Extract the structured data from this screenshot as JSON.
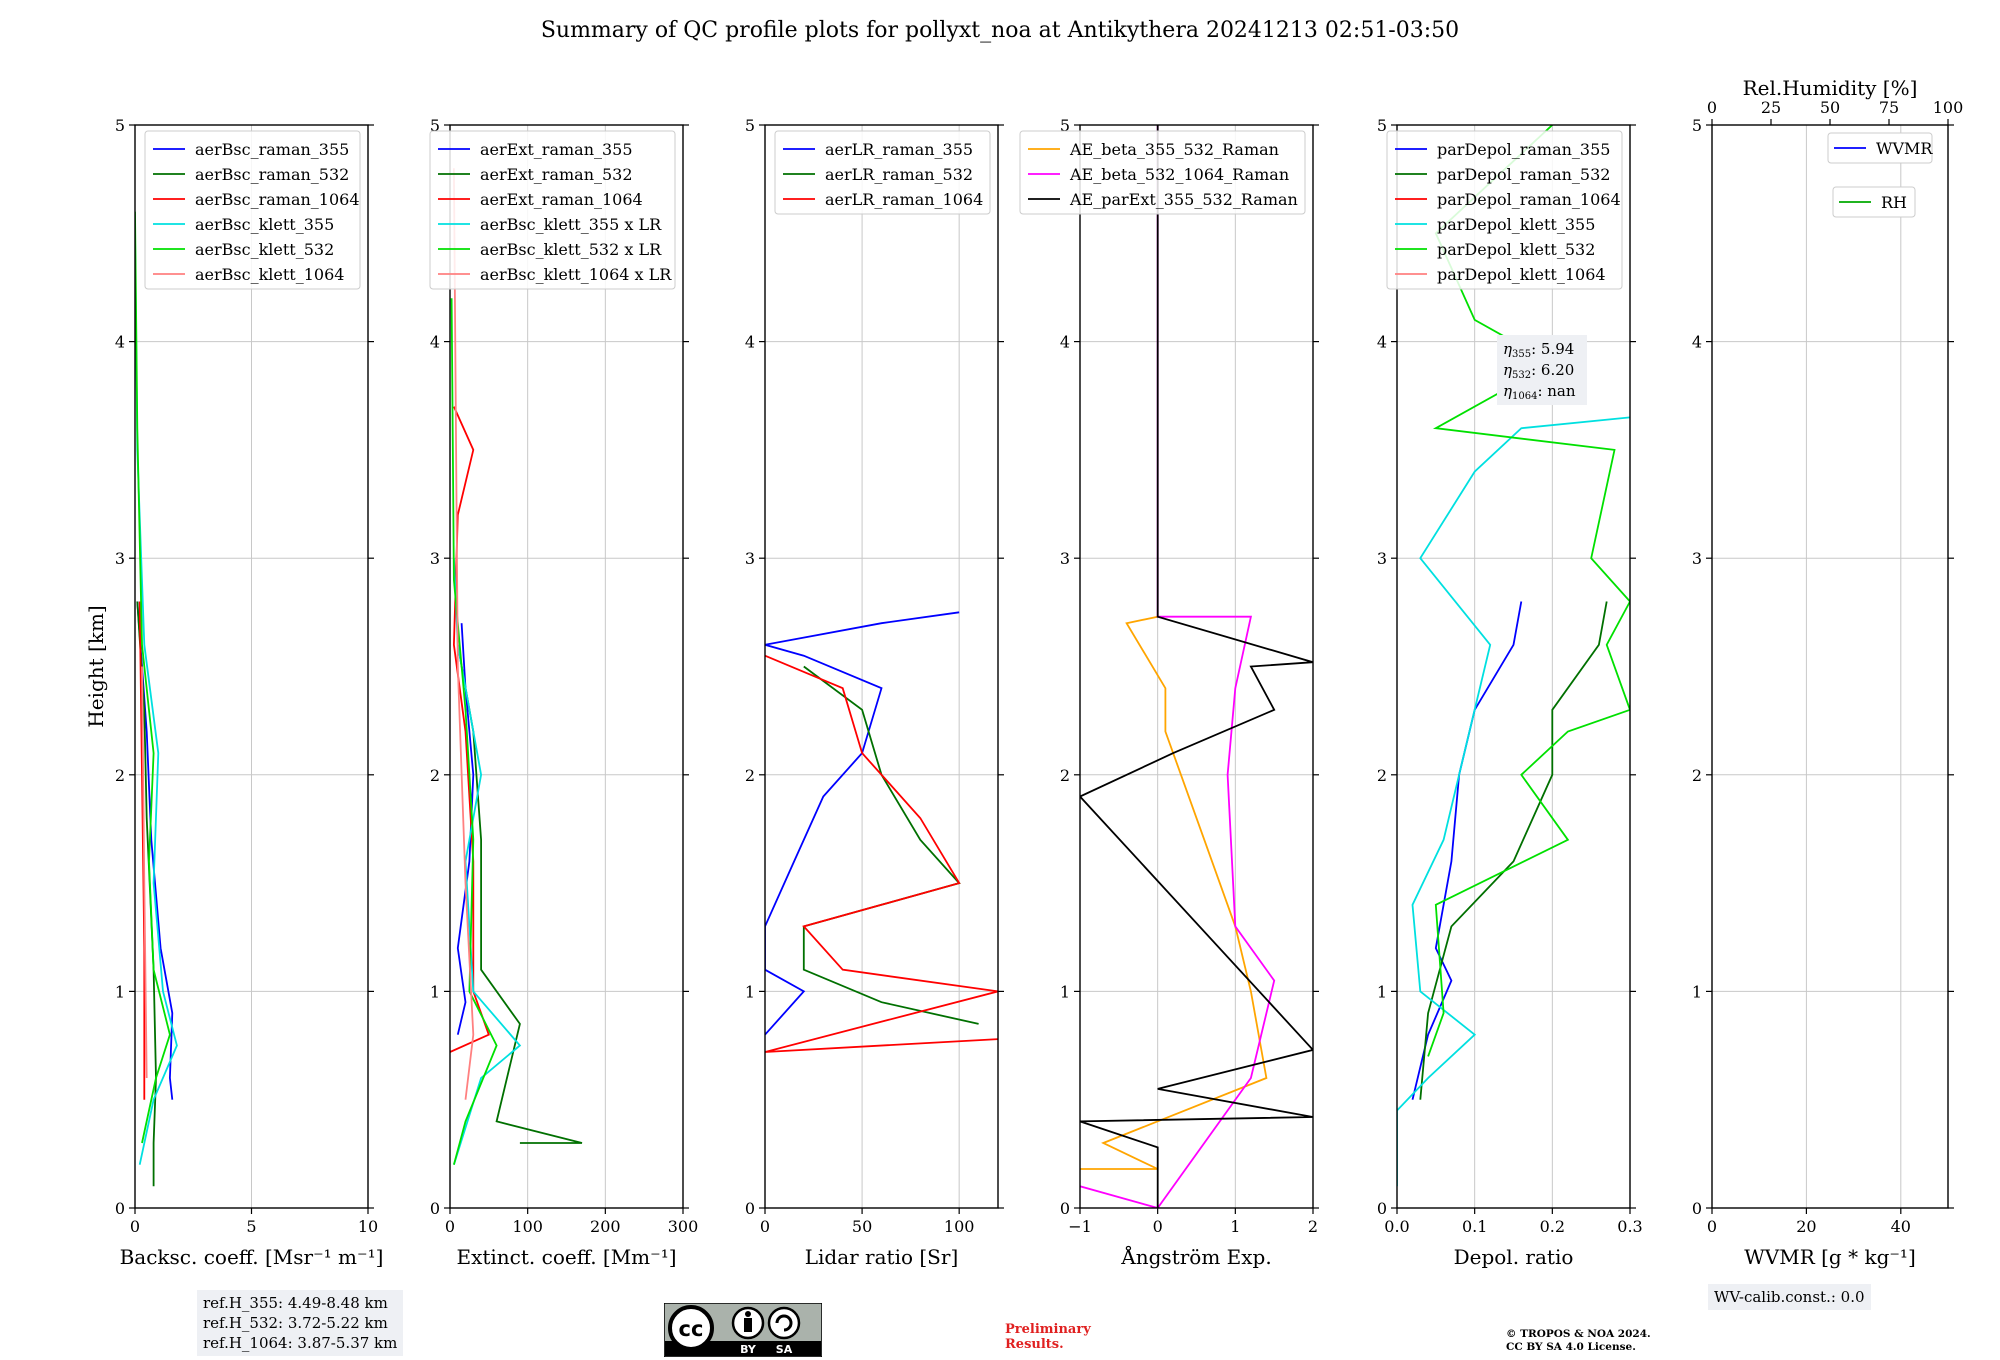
{
  "title": "Summary of QC profile plots for pollyxt_noa at Antikythera 20241213 02:51-03:50",
  "chart_data": [
    {
      "type": "line",
      "ylabel": "Height [km]",
      "xlabel": "Backsc. coeff. [Msr⁻¹ m⁻¹]",
      "xlim": [
        0,
        10
      ],
      "ylim": [
        0,
        5
      ],
      "xticks": [
        "0",
        "5",
        "10"
      ],
      "yticks": [
        "0",
        "1",
        "2",
        "3",
        "4",
        "5"
      ],
      "grid": true,
      "legend": "top-right",
      "series": [
        {
          "name": "aerBsc_raman_355",
          "color": "#0000ff",
          "points": [
            [
              1.6,
              0.5
            ],
            [
              1.5,
              0.6
            ],
            [
              1.6,
              0.9
            ],
            [
              1.1,
              1.2
            ],
            [
              0.7,
              1.7
            ],
            [
              0.5,
              2.2
            ],
            [
              0.3,
              2.5
            ],
            [
              0.1,
              2.8
            ]
          ]
        },
        {
          "name": "aerBsc_raman_532",
          "color": "#007000",
          "points": [
            [
              0.8,
              0.1
            ],
            [
              0.8,
              0.3
            ],
            [
              0.9,
              0.6
            ],
            [
              0.8,
              1.1
            ],
            [
              0.5,
              1.8
            ],
            [
              0.4,
              2.3
            ],
            [
              0.1,
              2.8
            ]
          ]
        },
        {
          "name": "aerBsc_raman_1064",
          "color": "#ff0000",
          "points": [
            [
              0.4,
              0.5
            ],
            [
              0.4,
              1.2
            ],
            [
              0.3,
              2.0
            ],
            [
              0.2,
              2.8
            ]
          ]
        },
        {
          "name": "aerBsc_klett_355",
          "color": "#00e0e0",
          "points": [
            [
              0.2,
              0.2
            ],
            [
              0.8,
              0.5
            ],
            [
              1.8,
              0.75
            ],
            [
              1.2,
              1.0
            ],
            [
              0.8,
              1.5
            ],
            [
              1.0,
              2.1
            ],
            [
              0.4,
              2.6
            ],
            [
              0.1,
              3.5
            ],
            [
              0.0,
              4.5
            ]
          ]
        },
        {
          "name": "aerBsc_klett_532",
          "color": "#00e000",
          "points": [
            [
              0.3,
              0.3
            ],
            [
              0.9,
              0.6
            ],
            [
              1.5,
              0.8
            ],
            [
              0.8,
              1.1
            ],
            [
              0.6,
              1.6
            ],
            [
              0.8,
              2.1
            ],
            [
              0.3,
              2.6
            ],
            [
              0.1,
              3.6
            ],
            [
              0.0,
              4.6
            ]
          ]
        },
        {
          "name": "aerBsc_klett_1064",
          "color": "#ff8080",
          "points": [
            [
              0.5,
              0.6
            ],
            [
              0.4,
              1.5
            ],
            [
              0.3,
              2.5
            ]
          ]
        }
      ]
    },
    {
      "type": "line",
      "xlabel": "Extinct. coeff. [Mm⁻¹]",
      "xlim": [
        0,
        300
      ],
      "ylim": [
        0,
        5
      ],
      "xticks": [
        "0",
        "100",
        "200",
        "300"
      ],
      "yticks": [
        "0",
        "1",
        "2",
        "3",
        "4",
        "5"
      ],
      "grid": true,
      "legend": "top-right",
      "series": [
        {
          "name": "aerExt_raman_355",
          "color": "#0000ff",
          "points": [
            [
              10,
              0.8
            ],
            [
              20,
              0.95
            ],
            [
              10,
              1.2
            ],
            [
              25,
              1.6
            ],
            [
              30,
              2.0
            ],
            [
              20,
              2.4
            ],
            [
              15,
              2.7
            ]
          ]
        },
        {
          "name": "aerExt_raman_532",
          "color": "#007000",
          "points": [
            [
              90,
              0.3
            ],
            [
              170,
              0.3
            ],
            [
              60,
              0.4
            ],
            [
              90,
              0.85
            ],
            [
              40,
              1.1
            ],
            [
              40,
              1.7
            ],
            [
              30,
              2.2
            ],
            [
              10,
              2.6
            ]
          ]
        },
        {
          "name": "aerExt_raman_1064",
          "color": "#ff0000",
          "points": [
            [
              0,
              0.72
            ],
            [
              50,
              0.8
            ],
            [
              30,
              1.0
            ],
            [
              30,
              1.6
            ],
            [
              20,
              2.2
            ],
            [
              5,
              2.6
            ],
            [
              10,
              3.2
            ],
            [
              30,
              3.5
            ],
            [
              5,
              3.7
            ]
          ]
        },
        {
          "name": "aerBsc_klett_355 x LR",
          "color": "#00e0e0",
          "points": [
            [
              5,
              0.2
            ],
            [
              40,
              0.6
            ],
            [
              90,
              0.75
            ],
            [
              30,
              1.0
            ],
            [
              20,
              1.6
            ],
            [
              40,
              2.0
            ],
            [
              10,
              2.6
            ],
            [
              5,
              3.0
            ]
          ]
        },
        {
          "name": "aerBsc_klett_532 x LR",
          "color": "#00e000",
          "points": [
            [
              5,
              0.2
            ],
            [
              20,
              0.4
            ],
            [
              60,
              0.75
            ],
            [
              25,
              1.0
            ],
            [
              30,
              1.7
            ],
            [
              20,
              2.3
            ],
            [
              5,
              2.9
            ],
            [
              2,
              4.2
            ]
          ]
        },
        {
          "name": "aerBsc_klett_1064 x LR",
          "color": "#ff8080",
          "points": [
            [
              20,
              0.5
            ],
            [
              30,
              0.8
            ],
            [
              20,
              1.5
            ],
            [
              10,
              2.5
            ],
            [
              5,
              4.8
            ]
          ]
        }
      ]
    },
    {
      "type": "line",
      "xlabel": "Lidar ratio [Sr]",
      "xlim": [
        0,
        120
      ],
      "ylim": [
        0,
        5
      ],
      "xticks": [
        "0",
        "50",
        "100"
      ],
      "yticks": [
        "0",
        "1",
        "2",
        "3",
        "4",
        "5"
      ],
      "grid": true,
      "legend": "top-right",
      "series": [
        {
          "name": "aerLR_raman_355",
          "color": "#0000ff",
          "points": [
            [
              0,
              0.8
            ],
            [
              20,
              1.0
            ],
            [
              0,
              1.1
            ],
            [
              0,
              1.3
            ],
            [
              15,
              1.6
            ],
            [
              30,
              1.9
            ],
            [
              50,
              2.1
            ],
            [
              60,
              2.4
            ],
            [
              20,
              2.55
            ],
            [
              0,
              2.6
            ],
            [
              60,
              2.7
            ],
            [
              100,
              2.75
            ]
          ]
        },
        {
          "name": "aerLR_raman_532",
          "color": "#007000",
          "points": [
            [
              110,
              0.85
            ],
            [
              60,
              0.95
            ],
            [
              20,
              1.1
            ],
            [
              20,
              1.3
            ],
            [
              60,
              1.4
            ],
            [
              100,
              1.5
            ],
            [
              80,
              1.7
            ],
            [
              60,
              2.0
            ],
            [
              50,
              2.3
            ],
            [
              20,
              2.5
            ]
          ]
        },
        {
          "name": "aerLR_raman_1064",
          "color": "#ff0000",
          "points": [
            [
              120,
              0.78
            ],
            [
              0,
              0.72
            ],
            [
              120,
              1.0
            ],
            [
              40,
              1.1
            ],
            [
              20,
              1.3
            ],
            [
              60,
              1.4
            ],
            [
              100,
              1.5
            ],
            [
              80,
              1.8
            ],
            [
              50,
              2.1
            ],
            [
              40,
              2.4
            ],
            [
              0,
              2.55
            ]
          ]
        }
      ]
    },
    {
      "type": "line",
      "xlabel": "Ångström Exp.",
      "xlim": [
        -1,
        2
      ],
      "ylim": [
        0,
        5
      ],
      "xticks": [
        "−1",
        "0",
        "1",
        "2"
      ],
      "yticks": [
        "0",
        "1",
        "2",
        "3",
        "4",
        "5"
      ],
      "grid": true,
      "legend": "top-right",
      "series": [
        {
          "name": "AE_beta_355_532_Raman",
          "color": "#ffa500",
          "points": [
            [
              -1,
              0.18
            ],
            [
              0,
              0.18
            ],
            [
              -0.7,
              0.3
            ],
            [
              1.4,
              0.6
            ],
            [
              1.2,
              1.0
            ],
            [
              1.0,
              1.3
            ],
            [
              0.6,
              1.7
            ],
            [
              0.1,
              2.2
            ],
            [
              0.1,
              2.4
            ],
            [
              -0.4,
              2.7
            ],
            [
              0,
              2.73
            ]
          ]
        },
        {
          "name": "AE_beta_532_1064_Raman",
          "color": "#ff00ff",
          "points": [
            [
              -1,
              0.1
            ],
            [
              0,
              0.0
            ],
            [
              1.2,
              0.6
            ],
            [
              1.5,
              1.05
            ],
            [
              1.0,
              1.3
            ],
            [
              0.9,
              2.0
            ],
            [
              1.0,
              2.4
            ],
            [
              1.2,
              2.73
            ],
            [
              0,
              2.73
            ],
            [
              0,
              5.0
            ]
          ]
        },
        {
          "name": "AE_parExt_355_532_Raman",
          "color": "#000000",
          "points": [
            [
              0,
              0.0
            ],
            [
              0,
              0.28
            ],
            [
              -1,
              0.4
            ],
            [
              2,
              0.42
            ],
            [
              0,
              0.55
            ],
            [
              2,
              0.73
            ],
            [
              -1,
              1.9
            ],
            [
              0.2,
              2.1
            ],
            [
              1.5,
              2.3
            ],
            [
              1.2,
              2.5
            ],
            [
              2,
              2.52
            ],
            [
              0,
              2.73
            ],
            [
              0,
              5.0
            ]
          ]
        }
      ]
    },
    {
      "type": "line",
      "xlabel": "Depol. ratio",
      "xlim": [
        0,
        0.3
      ],
      "ylim": [
        0,
        5
      ],
      "xticks": [
        "0.0",
        "0.1",
        "0.2",
        "0.3"
      ],
      "yticks": [
        "0",
        "1",
        "2",
        "3",
        "4",
        "5"
      ],
      "grid": true,
      "legend": "top-right",
      "series": [
        {
          "name": "parDepol_raman_355",
          "color": "#0000ff",
          "points": [
            [
              0.02,
              0.5
            ],
            [
              0.04,
              0.8
            ],
            [
              0.07,
              1.05
            ],
            [
              0.05,
              1.2
            ],
            [
              0.07,
              1.6
            ],
            [
              0.08,
              2.0
            ],
            [
              0.1,
              2.3
            ],
            [
              0.15,
              2.6
            ],
            [
              0.16,
              2.8
            ]
          ]
        },
        {
          "name": "parDepol_raman_532",
          "color": "#007000",
          "points": [
            [
              0.03,
              0.5
            ],
            [
              0.04,
              0.9
            ],
            [
              0.07,
              1.3
            ],
            [
              0.15,
              1.6
            ],
            [
              0.2,
              2.0
            ],
            [
              0.2,
              2.3
            ],
            [
              0.26,
              2.6
            ],
            [
              0.27,
              2.8
            ]
          ]
        },
        {
          "name": "parDepol_raman_1064",
          "color": "#ff0000",
          "points": []
        },
        {
          "name": "parDepol_klett_355",
          "color": "#00e0e0",
          "points": [
            [
              0.0,
              0.1
            ],
            [
              0.0,
              0.45
            ],
            [
              0.04,
              0.6
            ],
            [
              0.1,
              0.8
            ],
            [
              0.03,
              1.0
            ],
            [
              0.02,
              1.4
            ],
            [
              0.06,
              1.7
            ],
            [
              0.08,
              2.0
            ],
            [
              0.12,
              2.6
            ],
            [
              0.03,
              3.0
            ],
            [
              0.1,
              3.4
            ],
            [
              0.16,
              3.6
            ],
            [
              0.3,
              3.65
            ]
          ]
        },
        {
          "name": "parDepol_klett_532",
          "color": "#00e000",
          "points": [
            [
              0.04,
              0.7
            ],
            [
              0.06,
              0.9
            ],
            [
              0.05,
              1.4
            ],
            [
              0.22,
              1.7
            ],
            [
              0.16,
              2.0
            ],
            [
              0.22,
              2.2
            ],
            [
              0.3,
              2.3
            ],
            [
              0.27,
              2.6
            ],
            [
              0.3,
              2.8
            ],
            [
              0.25,
              3.0
            ],
            [
              0.28,
              3.5
            ],
            [
              0.05,
              3.6
            ],
            [
              0.2,
              3.9
            ],
            [
              0.1,
              4.1
            ],
            [
              0.05,
              4.5
            ],
            [
              0.2,
              5.0
            ]
          ]
        },
        {
          "name": "parDepol_klett_1064",
          "color": "#ff8080",
          "points": []
        }
      ]
    },
    {
      "type": "line",
      "xlabel": "WVMR [g * kg⁻¹]",
      "x2label": "Rel.Humidity [%]",
      "xlim": [
        0,
        50
      ],
      "x2lim": [
        0,
        100
      ],
      "ylim": [
        0,
        5
      ],
      "xticks": [
        "0",
        "20",
        "40"
      ],
      "x2ticks": [
        "0",
        "25",
        "50",
        "75",
        "100"
      ],
      "yticks": [
        "0",
        "1",
        "2",
        "3",
        "4",
        "5"
      ],
      "grid": true,
      "legend": "top-right",
      "series": [
        {
          "name": "WVMR",
          "color": "#0000ff",
          "points": []
        },
        {
          "name": "RH",
          "color": "#00aa00",
          "points": []
        }
      ]
    }
  ],
  "annotations": {
    "eta_355": "5.94",
    "eta_532": "6.20",
    "eta_1064": "nan",
    "refh": [
      "ref.H_355: 4.49-8.48 km",
      "ref.H_532: 3.72-5.22 km",
      "ref.H_1064: 3.87-5.37 km"
    ],
    "wv_calib": "WV-calib.const.: 0.0",
    "preliminary": [
      "Preliminary",
      "Results."
    ],
    "copyright": [
      "© TROPOS & NOA 2024.",
      "CC BY SA 4.0 License."
    ],
    "license_badge": [
      "BY",
      "SA"
    ]
  }
}
